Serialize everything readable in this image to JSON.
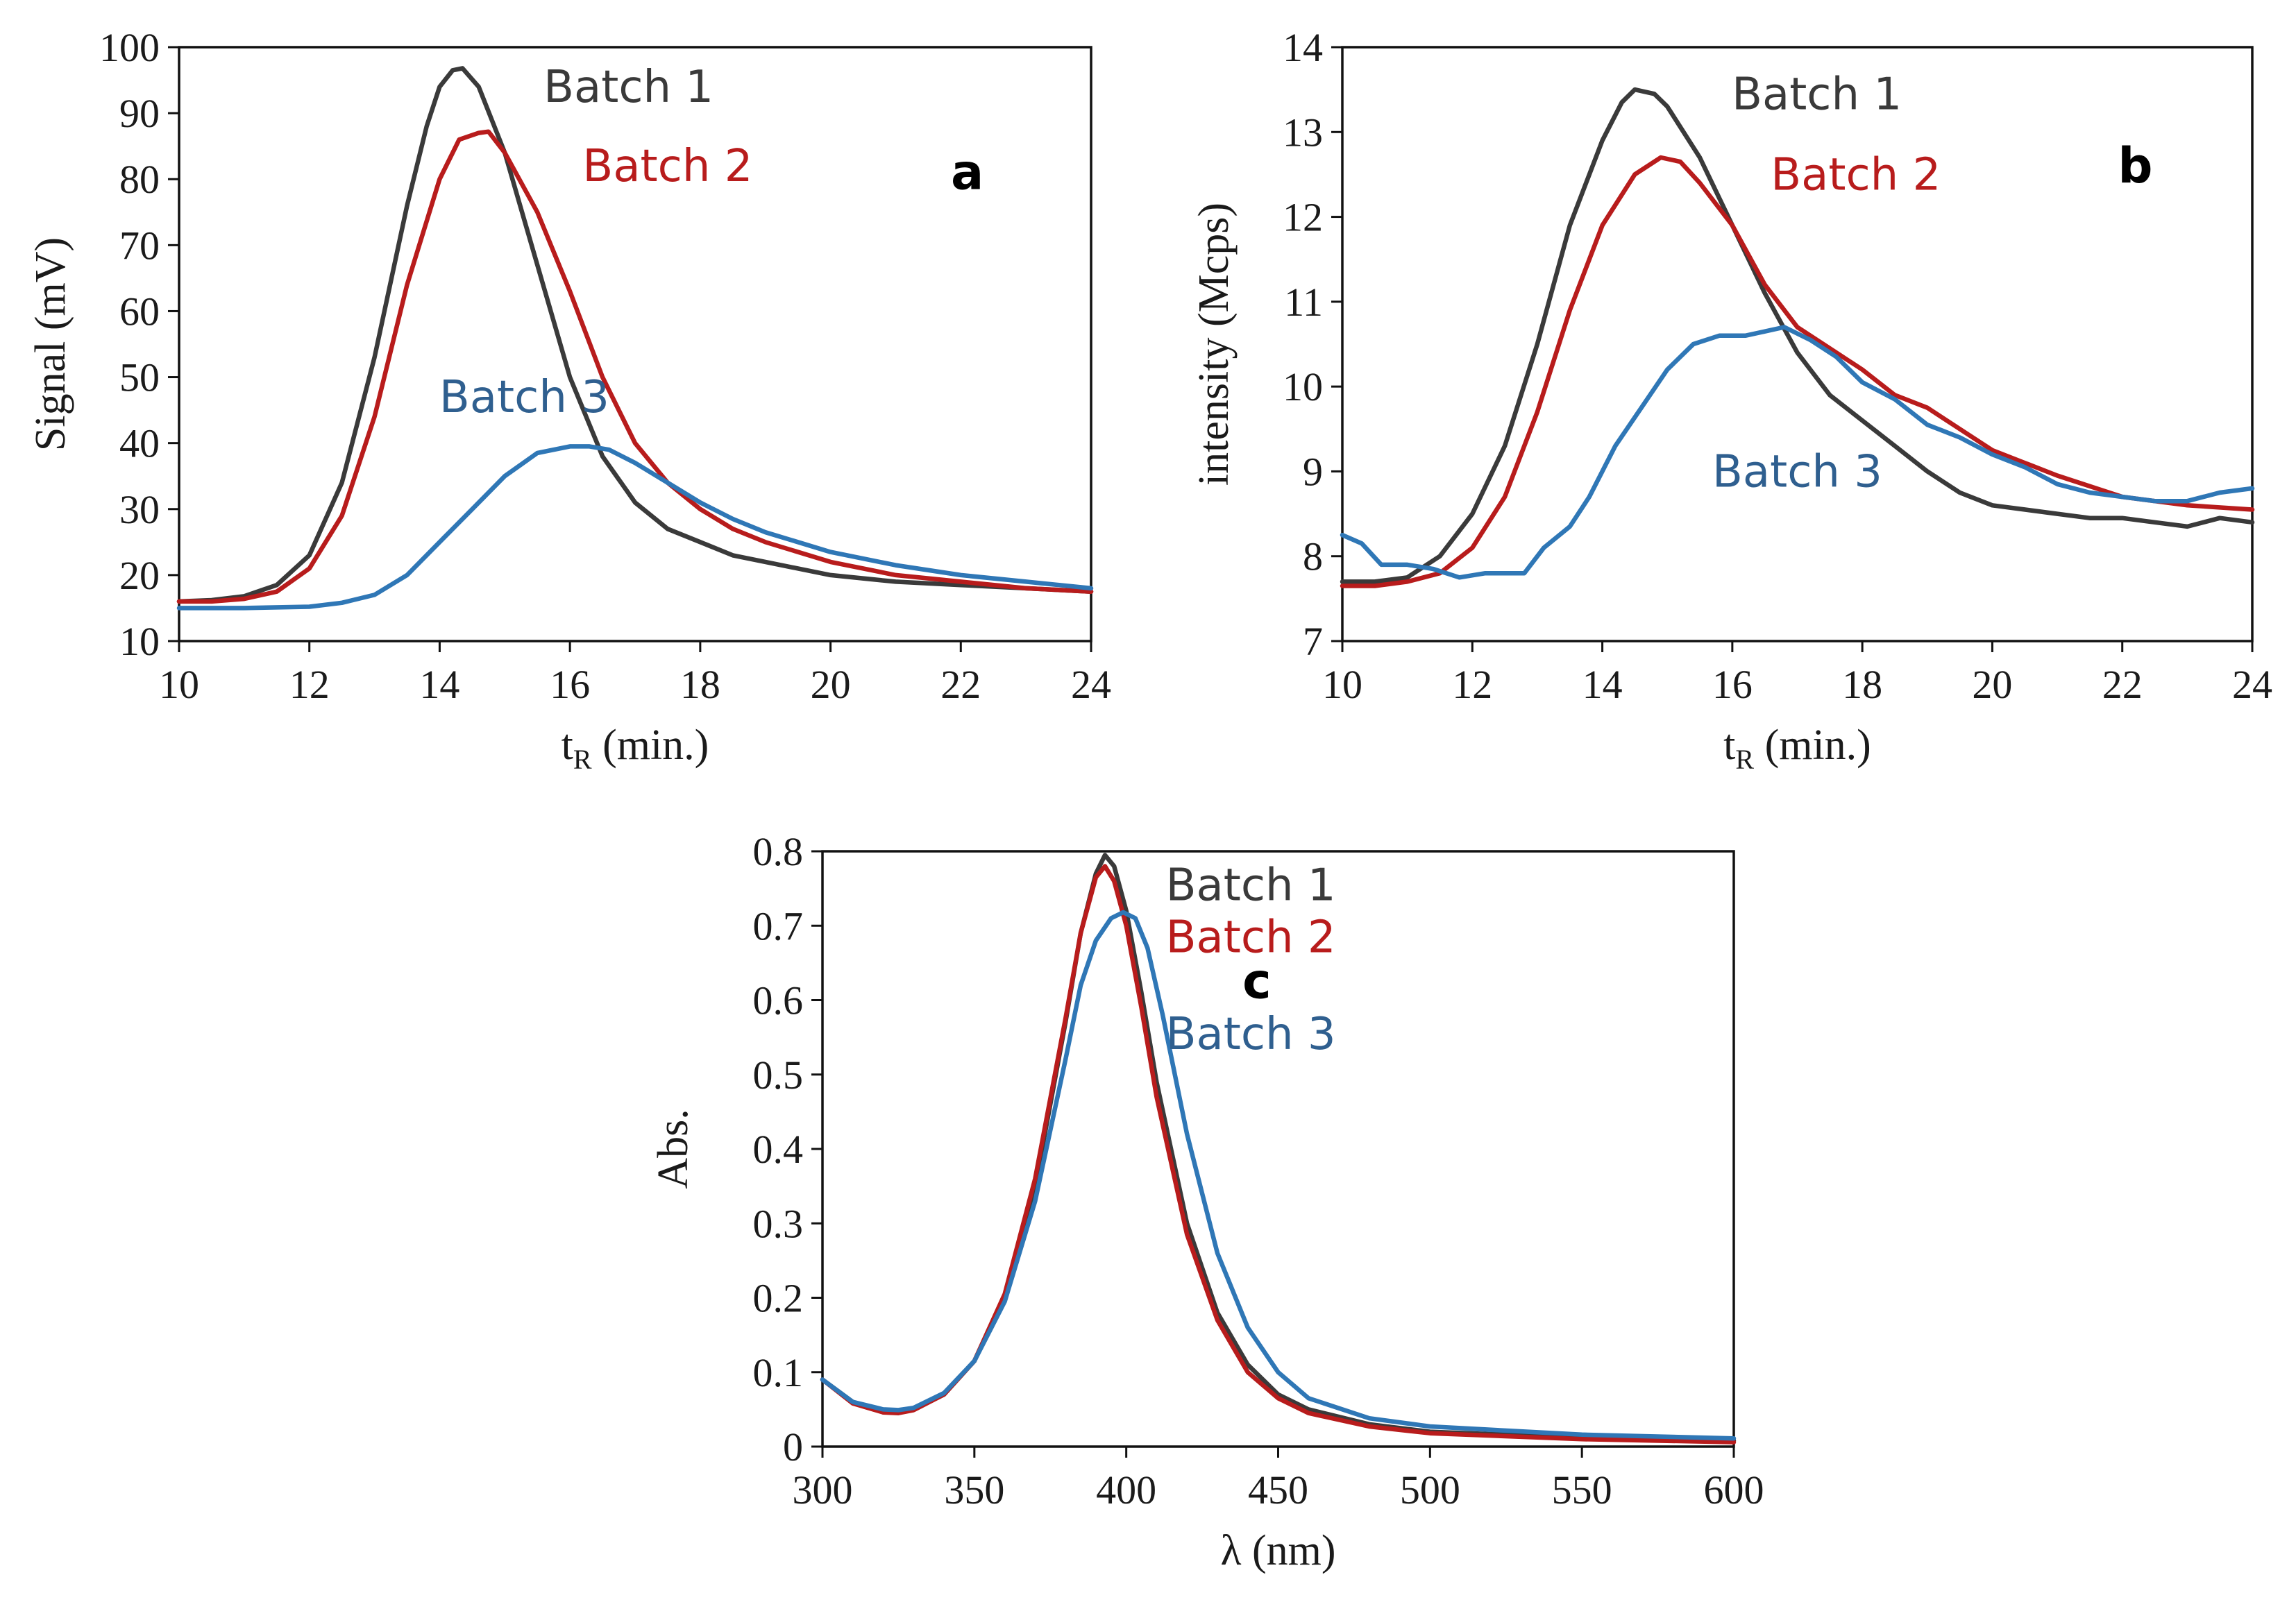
{
  "colors": {
    "batch1": "#3a3a3a",
    "batch2": "#b81c1c",
    "batch3": "#2f77b6",
    "label3": "#2f5f8f"
  },
  "chart_data": [
    {
      "id": "a",
      "type": "line",
      "panel_letter": "a",
      "xlabel_main": "t",
      "xlabel_sub": "R",
      "xlabel_unit": " (min.)",
      "ylabel": "Signal (mV)",
      "xlim": [
        10,
        24
      ],
      "ylim": [
        10,
        100
      ],
      "xticks": [
        10,
        12,
        14,
        16,
        18,
        20,
        22,
        24
      ],
      "yticks": [
        10,
        20,
        30,
        40,
        50,
        60,
        70,
        80,
        90,
        100
      ],
      "series": [
        {
          "name": "Batch 1",
          "label": "Batch 1",
          "color_key": "batch1",
          "x": [
            10,
            10.5,
            11,
            11.5,
            12,
            12.5,
            13,
            13.5,
            13.8,
            14,
            14.2,
            14.35,
            14.6,
            15,
            15.5,
            16,
            16.5,
            17,
            17.5,
            18,
            18.5,
            19,
            20,
            21,
            22,
            23,
            24
          ],
          "y": [
            16,
            16.2,
            16.8,
            18.5,
            23,
            34,
            53,
            76,
            88,
            94,
            96.5,
            96.8,
            94,
            84,
            67,
            50,
            38,
            31,
            27,
            25,
            23,
            22,
            20,
            19,
            18.5,
            18,
            17.5
          ]
        },
        {
          "name": "Batch 2",
          "label": "Batch 2",
          "color_key": "batch2",
          "x": [
            10,
            10.5,
            11,
            11.5,
            12,
            12.5,
            13,
            13.5,
            14,
            14.3,
            14.6,
            14.75,
            15,
            15.5,
            16,
            16.5,
            17,
            17.5,
            18,
            18.5,
            19,
            20,
            21,
            22,
            23,
            24
          ],
          "y": [
            16,
            16,
            16.4,
            17.5,
            21,
            29,
            44,
            64,
            80,
            86,
            87,
            87.2,
            84,
            75,
            63,
            50,
            40,
            34,
            30,
            27,
            25,
            22,
            20,
            19,
            18,
            17.5
          ]
        },
        {
          "name": "Batch 3",
          "label": "Batch 3",
          "color_key": "batch3",
          "x": [
            10,
            11,
            12,
            12.5,
            13,
            13.5,
            14,
            14.5,
            15,
            15.5,
            16,
            16.3,
            16.6,
            17,
            17.5,
            18,
            18.5,
            19,
            20,
            21,
            22,
            23,
            24
          ],
          "y": [
            15,
            15,
            15.2,
            15.8,
            17,
            20,
            25,
            30,
            35,
            38.5,
            39.5,
            39.5,
            39,
            37,
            34,
            31,
            28.5,
            26.5,
            23.5,
            21.5,
            20,
            19,
            18
          ]
        }
      ],
      "annotations": [
        {
          "series": 0,
          "x": 16.9,
          "y": 94
        },
        {
          "series": 1,
          "x": 17.5,
          "y": 82
        },
        {
          "series": 2,
          "x": 15.3,
          "y": 47
        }
      ],
      "letter_pos": {
        "x": 22.1,
        "y": 81
      }
    },
    {
      "id": "b",
      "type": "line",
      "panel_letter": "b",
      "xlabel_main": "t",
      "xlabel_sub": "R",
      "xlabel_unit": " (min.)",
      "ylabel": "intensity (Mcps)",
      "xlim": [
        10,
        24
      ],
      "ylim": [
        7,
        14
      ],
      "xticks": [
        10,
        12,
        14,
        16,
        18,
        20,
        22,
        24
      ],
      "yticks": [
        7,
        8,
        9,
        10,
        11,
        12,
        13,
        14
      ],
      "series": [
        {
          "name": "Batch 1",
          "label": "Batch 1",
          "color_key": "batch1",
          "x": [
            10,
            10.5,
            11,
            11.5,
            12,
            12.5,
            13,
            13.5,
            14,
            14.3,
            14.5,
            14.8,
            15,
            15.5,
            16,
            16.5,
            17,
            17.5,
            18,
            18.5,
            19,
            19.5,
            20,
            21,
            21.5,
            22,
            22.5,
            23,
            23.5,
            24
          ],
          "y": [
            7.7,
            7.7,
            7.75,
            8.0,
            8.5,
            9.3,
            10.5,
            11.9,
            12.9,
            13.35,
            13.5,
            13.45,
            13.3,
            12.7,
            11.9,
            11.1,
            10.4,
            9.9,
            9.6,
            9.3,
            9.0,
            8.75,
            8.6,
            8.5,
            8.45,
            8.45,
            8.4,
            8.35,
            8.45,
            8.4
          ]
        },
        {
          "name": "Batch 2",
          "label": "Batch 2",
          "color_key": "batch2",
          "x": [
            10,
            10.5,
            11,
            11.5,
            12,
            12.5,
            13,
            13.5,
            14,
            14.5,
            14.9,
            15.2,
            15.5,
            16,
            16.5,
            17,
            17.5,
            18,
            18.5,
            19,
            19.5,
            20,
            21,
            22,
            23,
            24
          ],
          "y": [
            7.65,
            7.65,
            7.7,
            7.8,
            8.1,
            8.7,
            9.7,
            10.9,
            11.9,
            12.5,
            12.7,
            12.65,
            12.4,
            11.9,
            11.2,
            10.7,
            10.45,
            10.2,
            9.9,
            9.75,
            9.5,
            9.25,
            8.95,
            8.7,
            8.6,
            8.55
          ]
        },
        {
          "name": "Batch 3",
          "label": "Batch 3",
          "color_key": "batch3",
          "x": [
            10,
            10.3,
            10.6,
            11,
            11.4,
            11.8,
            12.2,
            12.5,
            12.8,
            13.1,
            13.5,
            13.8,
            14.2,
            14.6,
            15,
            15.4,
            15.8,
            16.2,
            16.5,
            16.8,
            17.2,
            17.6,
            18,
            18.5,
            19,
            19.5,
            20,
            20.5,
            21,
            21.5,
            22,
            22.5,
            23,
            23.5,
            24
          ],
          "y": [
            8.25,
            8.15,
            7.9,
            7.9,
            7.85,
            7.75,
            7.8,
            7.8,
            7.8,
            8.1,
            8.35,
            8.7,
            9.3,
            9.75,
            10.2,
            10.5,
            10.6,
            10.6,
            10.65,
            10.7,
            10.55,
            10.35,
            10.05,
            9.85,
            9.55,
            9.4,
            9.2,
            9.05,
            8.85,
            8.75,
            8.7,
            8.65,
            8.65,
            8.75,
            8.8
          ]
        }
      ],
      "annotations": [
        {
          "series": 0,
          "x": 17.3,
          "y": 13.45
        },
        {
          "series": 1,
          "x": 17.9,
          "y": 12.5
        },
        {
          "series": 2,
          "x": 17.0,
          "y": 9.0
        }
      ],
      "letter_pos": {
        "x": 22.2,
        "y": 12.6
      }
    },
    {
      "id": "c",
      "type": "line",
      "panel_letter": "c",
      "xlabel_main": "λ (nm)",
      "xlabel_sub": "",
      "xlabel_unit": "",
      "ylabel": "Abs.",
      "xlim": [
        300,
        600
      ],
      "ylim": [
        0,
        0.8
      ],
      "xticks": [
        300,
        350,
        400,
        450,
        500,
        550,
        600
      ],
      "yticks": [
        0,
        0.1,
        0.2,
        0.3,
        0.4,
        0.5,
        0.6,
        0.7,
        0.8
      ],
      "series": [
        {
          "name": "Batch 1",
          "label": "Batch 1",
          "color_key": "batch1",
          "x": [
            300,
            310,
            320,
            325,
            330,
            340,
            350,
            360,
            370,
            380,
            385,
            390,
            393,
            396,
            400,
            405,
            410,
            420,
            430,
            440,
            450,
            460,
            480,
            500,
            550,
            600
          ],
          "y": [
            0.09,
            0.06,
            0.048,
            0.047,
            0.05,
            0.07,
            0.115,
            0.2,
            0.35,
            0.57,
            0.69,
            0.77,
            0.795,
            0.78,
            0.72,
            0.61,
            0.49,
            0.3,
            0.18,
            0.11,
            0.07,
            0.05,
            0.03,
            0.02,
            0.012,
            0.008
          ]
        },
        {
          "name": "Batch 2",
          "label": "Batch 2",
          "color_key": "batch2",
          "x": [
            300,
            310,
            320,
            325,
            330,
            340,
            350,
            360,
            370,
            380,
            385,
            390,
            393,
            396,
            400,
            405,
            410,
            420,
            430,
            440,
            450,
            460,
            480,
            500,
            550,
            600
          ],
          "y": [
            0.09,
            0.058,
            0.046,
            0.045,
            0.049,
            0.07,
            0.115,
            0.205,
            0.36,
            0.575,
            0.69,
            0.765,
            0.78,
            0.76,
            0.7,
            0.59,
            0.47,
            0.285,
            0.17,
            0.1,
            0.065,
            0.045,
            0.027,
            0.018,
            0.01,
            0.006
          ]
        },
        {
          "name": "Batch 3",
          "label": "Batch 3",
          "color_key": "batch3",
          "x": [
            300,
            310,
            320,
            325,
            330,
            340,
            350,
            360,
            370,
            380,
            385,
            390,
            395,
            399,
            403,
            407,
            412,
            420,
            430,
            440,
            450,
            460,
            480,
            500,
            550,
            600
          ],
          "y": [
            0.09,
            0.06,
            0.05,
            0.049,
            0.052,
            0.072,
            0.115,
            0.195,
            0.33,
            0.52,
            0.62,
            0.68,
            0.71,
            0.718,
            0.71,
            0.67,
            0.58,
            0.42,
            0.26,
            0.16,
            0.1,
            0.065,
            0.038,
            0.027,
            0.016,
            0.011
          ]
        }
      ],
      "annotations": [
        {
          "series": 0,
          "x": 441,
          "y": 0.755
        },
        {
          "series": 1,
          "x": 441,
          "y": 0.685
        },
        {
          "series": 2,
          "x": 441,
          "y": 0.555
        }
      ],
      "letter_pos": {
        "x": 443,
        "y": 0.625
      }
    }
  ]
}
